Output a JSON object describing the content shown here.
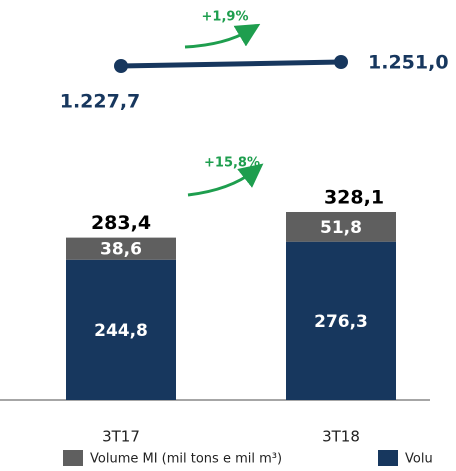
{
  "chart_data": [
    {
      "type": "line",
      "categories": [
        "3T17",
        "3T18"
      ],
      "series": [
        {
          "color": "#17375e",
          "values": [
            1227.7,
            1251.0
          ],
          "value_labels": [
            "1.227,7",
            "1.251,0"
          ]
        }
      ],
      "annotation": "+1,9%",
      "annotation_color": "#1e9e4e"
    },
    {
      "type": "bar",
      "stacked": true,
      "categories": [
        "3T17",
        "3T18"
      ],
      "series": [
        {
          "name": "Volume MI (mil tons e mil m³)",
          "color": "#5f5f5f",
          "values": [
            38.6,
            51.8
          ],
          "value_labels": [
            "38,6",
            "51,8"
          ]
        },
        {
          "name": "Volu",
          "color": "#17375e",
          "values": [
            244.8,
            276.3
          ],
          "value_labels": [
            "244,8",
            "276,3"
          ]
        }
      ],
      "totals": [
        283.4,
        328.1
      ],
      "totals_labels": [
        "283,4",
        "328,1"
      ],
      "annotation": "+15,8%",
      "annotation_color": "#1e9e4e"
    }
  ]
}
